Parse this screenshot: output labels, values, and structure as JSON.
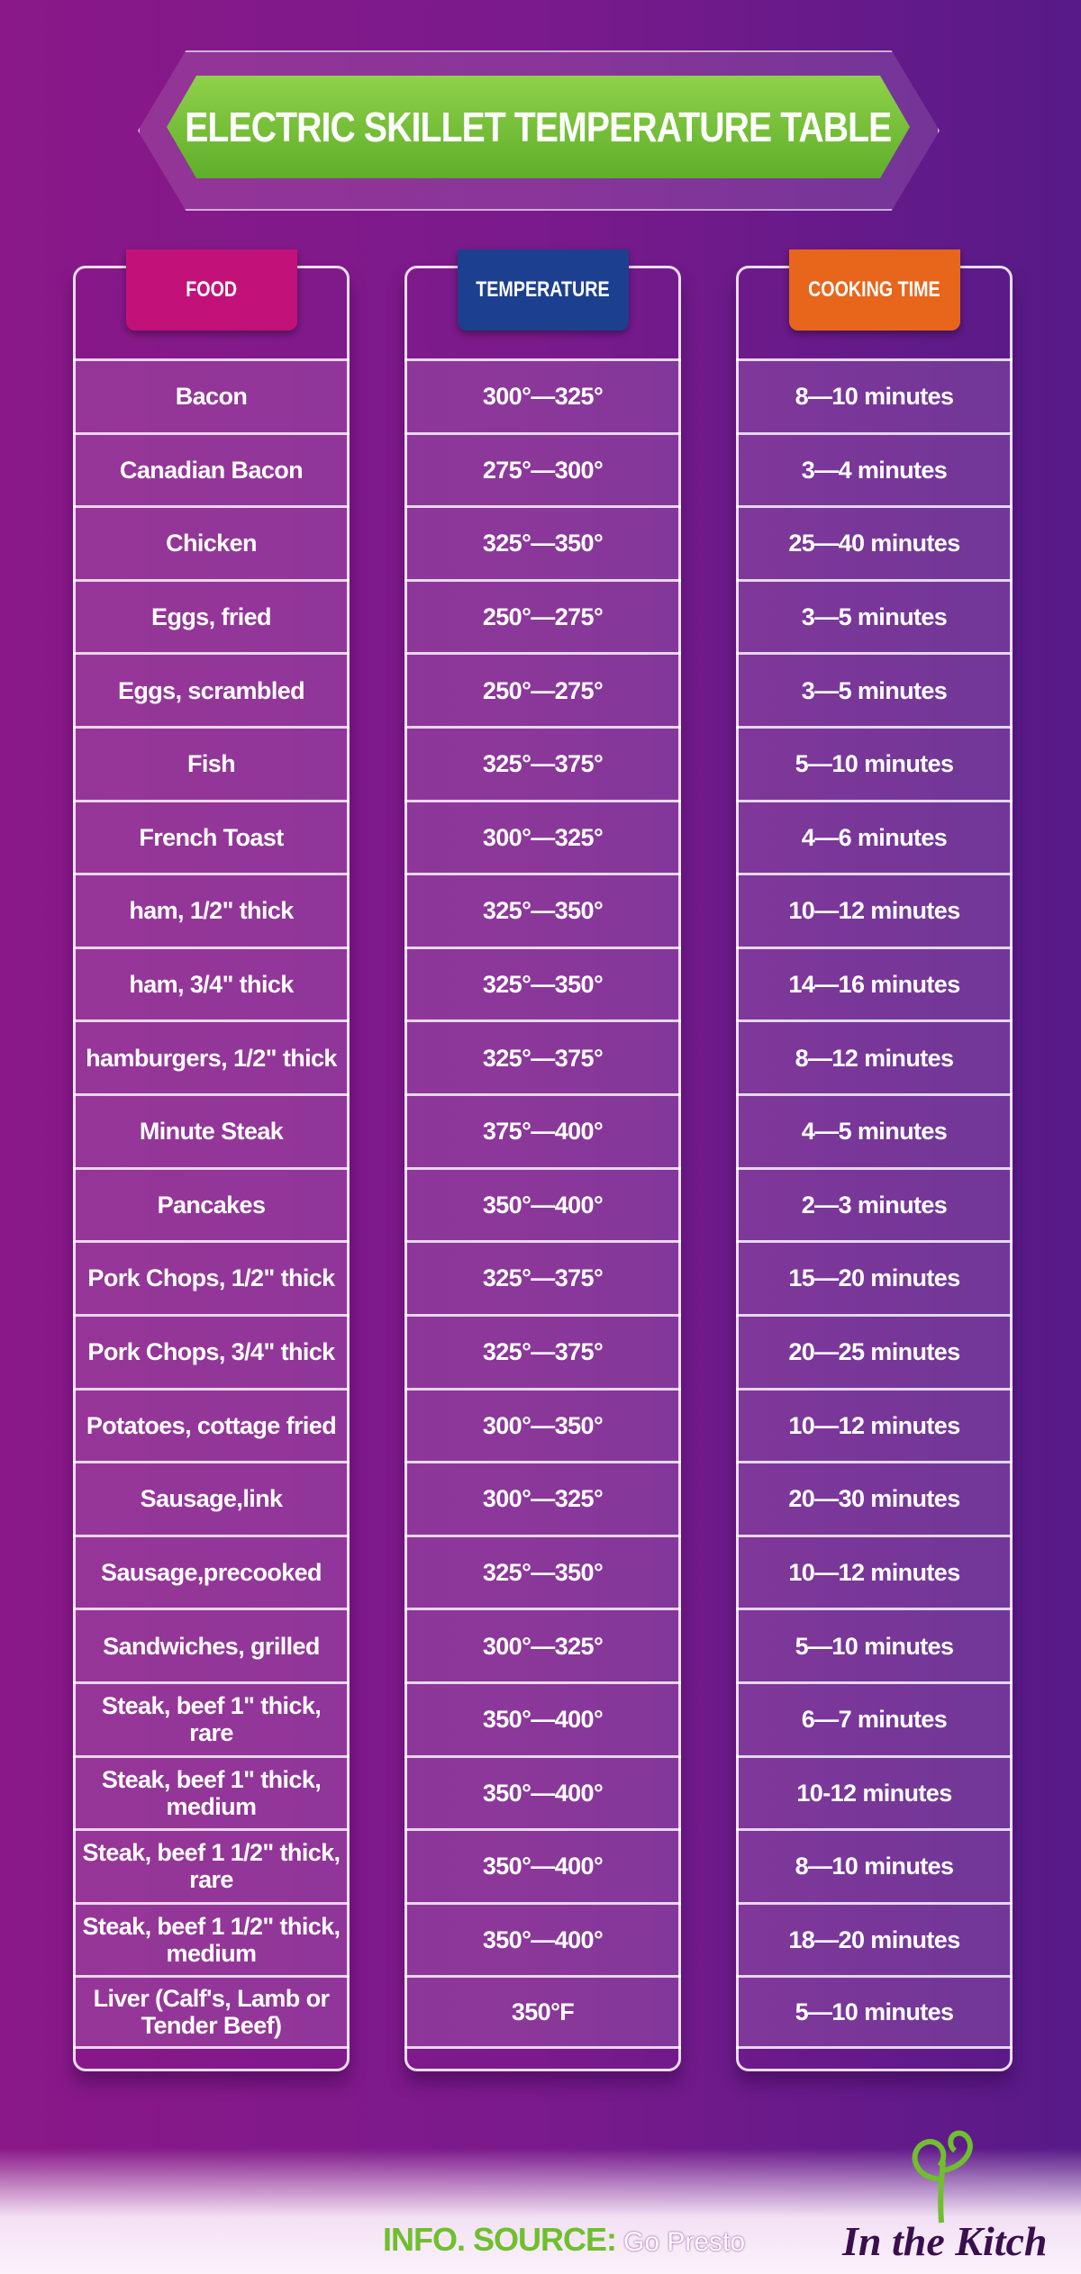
{
  "title": "ELECTRIC SKILLET TEMPERATURE TABLE",
  "table": {
    "headers": [
      "FOOD",
      "TEMPERATURE",
      "COOKING TIME"
    ],
    "rows": [
      [
        "Bacon",
        "300°—325°",
        "8—10 minutes"
      ],
      [
        "Canadian Bacon",
        "275°—300°",
        "3—4 minutes"
      ],
      [
        "Chicken",
        "325°—350°",
        "25—40 minutes"
      ],
      [
        "Eggs, fried",
        "250°—275°",
        "3—5 minutes"
      ],
      [
        "Eggs, scrambled",
        "250°—275°",
        "3—5 minutes"
      ],
      [
        "Fish",
        "325°—375°",
        "5—10 minutes"
      ],
      [
        "French Toast",
        "300°—325°",
        "4—6 minutes"
      ],
      [
        "ham, 1/2\" thick",
        "325°—350°",
        "10—12 minutes"
      ],
      [
        "ham, 3/4\" thick",
        "325°—350°",
        "14—16 minutes"
      ],
      [
        "hamburgers, 1/2\" thick",
        "325°—375°",
        "8—12 minutes"
      ],
      [
        "Minute Steak",
        "375°—400°",
        "4—5 minutes"
      ],
      [
        "Pancakes",
        "350°—400°",
        "2—3 minutes"
      ],
      [
        "Pork Chops, 1/2\" thick",
        "325°—375°",
        "15—20 minutes"
      ],
      [
        "Pork Chops, 3/4\" thick",
        "325°—375°",
        "20—25 minutes"
      ],
      [
        "Potatoes, cottage fried",
        "300°—350°",
        "10—12 minutes"
      ],
      [
        "Sausage,link",
        "300°—325°",
        "20—30 minutes"
      ],
      [
        "Sausage,precooked",
        "325°—350°",
        "10—12 minutes"
      ],
      [
        "Sandwiches, grilled",
        "300°—325°",
        "5—10 minutes"
      ],
      [
        "Steak, beef 1\" thick, rare",
        "350°—400°",
        "6—7 minutes"
      ],
      [
        "Steak, beef 1\" thick, medium",
        "350°—400°",
        "10-12 minutes"
      ],
      [
        "Steak, beef 1 1/2\" thick, rare",
        "350°—400°",
        "8—10 minutes"
      ],
      [
        "Steak, beef 1 1/2\" thick, medium",
        "350°—400°",
        "18—20 minutes"
      ],
      [
        "Liver (Calf's, Lamb or Tender Beef)",
        "350°F",
        "5—10 minutes"
      ]
    ]
  },
  "footer": {
    "source_label": "INFO. SOURCE:",
    "source": "Go Presto",
    "logo": "In the Kitch"
  }
}
